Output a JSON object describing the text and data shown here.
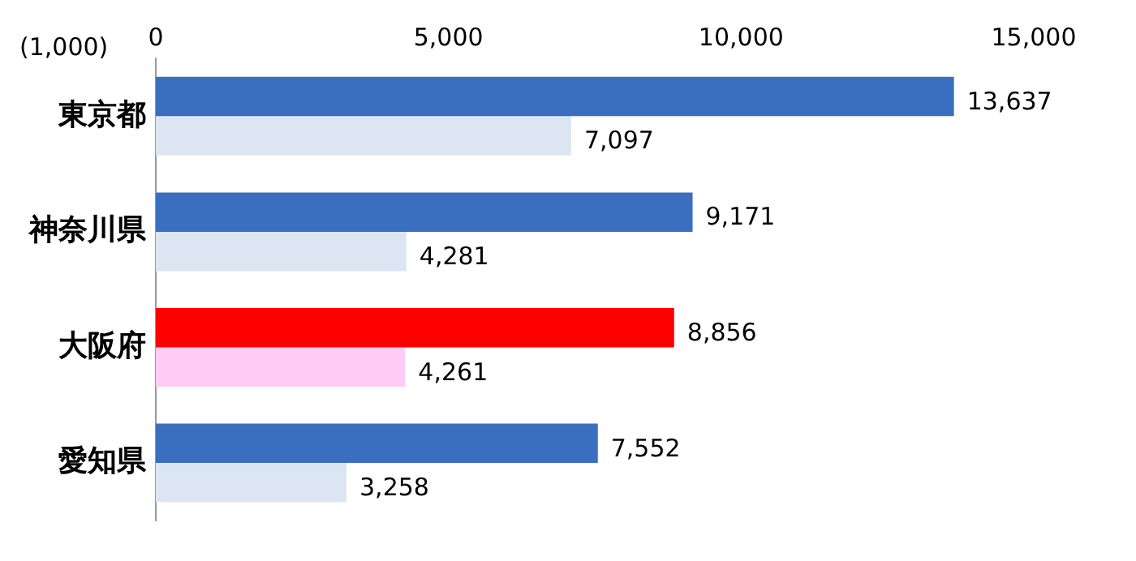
{
  "chart_data": {
    "type": "bar",
    "orientation": "horizontal",
    "categories": [
      "東京都",
      "神奈川県",
      "大阪府",
      "愛知県"
    ],
    "series": [
      {
        "colors": [
          "#3a6fbf",
          "#3a6fbf",
          "#ff0000",
          "#3a6fbf"
        ],
        "values": [
          13637,
          9171,
          8856,
          7552
        ],
        "value_labels": [
          "13,637",
          "9,171",
          "8,856",
          "7,552"
        ]
      },
      {
        "colors": [
          "#dce6f2",
          "#dce6f2",
          "#ffccf5",
          "#dce6f2"
        ],
        "values": [
          7097,
          4281,
          4261,
          3258
        ],
        "value_labels": [
          "7,097",
          "4,281",
          "4,261",
          "3,258"
        ]
      }
    ],
    "xlim": [
      0,
      15000
    ],
    "xticks": [
      {
        "value": 0,
        "label": "0"
      },
      {
        "value": 5000,
        "label": "5,000"
      },
      {
        "value": 10000,
        "label": "10,000"
      },
      {
        "value": 15000,
        "label": "15,000"
      }
    ],
    "annotations": [
      "(1,000)"
    ],
    "grid": false,
    "legend": false
  }
}
